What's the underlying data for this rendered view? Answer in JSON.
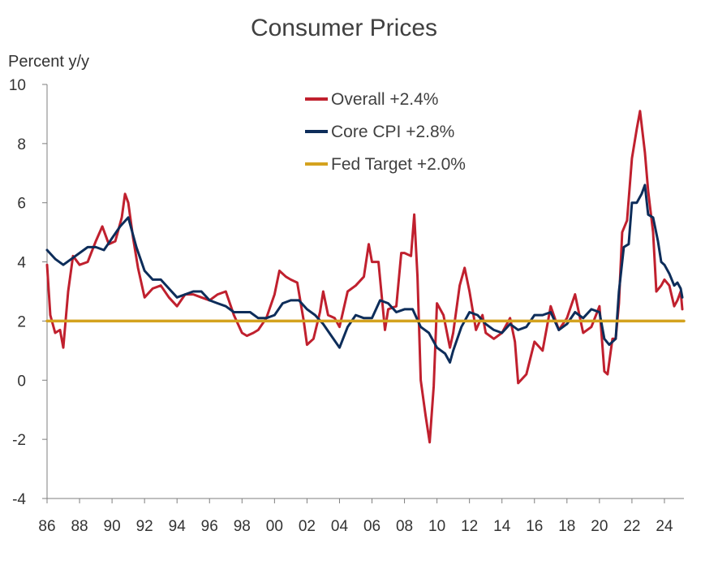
{
  "chart_data": {
    "type": "line",
    "title": "Consumer Prices",
    "ylabel": "Percent y/y",
    "xlabel": "",
    "ylim": [
      -4,
      10
    ],
    "xlim": [
      1986,
      2025.2
    ],
    "yticks": [
      -4,
      -2,
      0,
      2,
      4,
      6,
      8,
      10
    ],
    "xticks": [
      1986,
      1988,
      1990,
      1992,
      1994,
      1996,
      1998,
      2000,
      2002,
      2004,
      2006,
      2008,
      2010,
      2012,
      2014,
      2016,
      2018,
      2020,
      2022,
      2024
    ],
    "xtick_labels": [
      "86",
      "88",
      "90",
      "92",
      "94",
      "96",
      "98",
      "00",
      "02",
      "04",
      "06",
      "08",
      "10",
      "12",
      "14",
      "16",
      "18",
      "20",
      "22",
      "24"
    ],
    "grid": false,
    "legend_position": "top-center",
    "series": [
      {
        "name": "Overall +2.4%",
        "color": "#C0202E",
        "x": [
          1986.0,
          1986.2,
          1986.5,
          1986.8,
          1987.0,
          1987.3,
          1987.6,
          1988.0,
          1988.5,
          1989.0,
          1989.4,
          1989.8,
          1990.2,
          1990.6,
          1990.8,
          1991.0,
          1991.3,
          1991.6,
          1992.0,
          1992.5,
          1993.0,
          1993.5,
          1994.0,
          1994.5,
          1995.0,
          1995.5,
          1996.0,
          1996.5,
          1997.0,
          1997.5,
          1998.0,
          1998.3,
          1998.7,
          1999.0,
          1999.5,
          2000.0,
          2000.3,
          2000.7,
          2001.0,
          2001.4,
          2001.8,
          2002.0,
          2002.4,
          2002.8,
          2003.0,
          2003.3,
          2003.7,
          2004.0,
          2004.5,
          2005.0,
          2005.5,
          2005.8,
          2006.0,
          2006.4,
          2006.8,
          2007.0,
          2007.5,
          2007.8,
          2008.0,
          2008.4,
          2008.6,
          2008.8,
          2009.0,
          2009.3,
          2009.55,
          2009.8,
          2010.0,
          2010.4,
          2010.8,
          2011.0,
          2011.4,
          2011.7,
          2012.0,
          2012.4,
          2012.8,
          2013.0,
          2013.5,
          2014.0,
          2014.5,
          2014.8,
          2015.0,
          2015.5,
          2016.0,
          2016.5,
          2017.0,
          2017.5,
          2018.0,
          2018.5,
          2019.0,
          2019.5,
          2020.0,
          2020.3,
          2020.5,
          2020.8,
          2021.0,
          2021.2,
          2021.4,
          2021.7,
          2022.0,
          2022.3,
          2022.5,
          2022.8,
          2023.0,
          2023.3,
          2023.5,
          2023.8,
          2024.0,
          2024.3,
          2024.6,
          2024.8,
          2025.0,
          2025.1
        ],
        "values": [
          3.9,
          2.2,
          1.6,
          1.7,
          1.1,
          3.0,
          4.2,
          3.9,
          4.0,
          4.7,
          5.2,
          4.6,
          4.7,
          5.5,
          6.3,
          6.0,
          4.8,
          3.8,
          2.8,
          3.1,
          3.2,
          2.8,
          2.5,
          2.9,
          2.9,
          2.8,
          2.7,
          2.9,
          3.0,
          2.2,
          1.6,
          1.5,
          1.6,
          1.7,
          2.1,
          2.9,
          3.7,
          3.5,
          3.4,
          3.3,
          2.0,
          1.2,
          1.4,
          2.3,
          3.0,
          2.2,
          2.1,
          1.8,
          3.0,
          3.2,
          3.5,
          4.6,
          4.0,
          4.0,
          1.7,
          2.4,
          2.5,
          4.3,
          4.3,
          4.2,
          5.6,
          3.5,
          0.0,
          -1.2,
          -2.1,
          -0.2,
          2.6,
          2.2,
          1.1,
          1.6,
          3.2,
          3.8,
          3.0,
          1.7,
          2.2,
          1.6,
          1.4,
          1.6,
          2.1,
          1.3,
          -0.1,
          0.2,
          1.3,
          1.0,
          2.5,
          1.7,
          2.1,
          2.9,
          1.6,
          1.8,
          2.5,
          0.3,
          0.2,
          1.4,
          1.4,
          2.6,
          5.0,
          5.4,
          7.5,
          8.5,
          9.1,
          7.7,
          6.4,
          5.0,
          3.0,
          3.2,
          3.4,
          3.2,
          2.5,
          2.7,
          3.0,
          2.4
        ]
      },
      {
        "name": "Core CPI +2.8%",
        "color": "#0D2D5A",
        "x": [
          1986.0,
          1986.5,
          1987.0,
          1987.5,
          1988.0,
          1988.5,
          1989.0,
          1989.5,
          1990.0,
          1990.5,
          1991.0,
          1991.5,
          1992.0,
          1992.5,
          1993.0,
          1993.5,
          1994.0,
          1994.5,
          1995.0,
          1995.5,
          1996.0,
          1996.5,
          1997.0,
          1997.5,
          1998.0,
          1998.5,
          1999.0,
          1999.5,
          2000.0,
          2000.5,
          2001.0,
          2001.5,
          2002.0,
          2002.5,
          2003.0,
          2003.5,
          2004.0,
          2004.5,
          2005.0,
          2005.5,
          2006.0,
          2006.5,
          2007.0,
          2007.5,
          2008.0,
          2008.5,
          2009.0,
          2009.5,
          2010.0,
          2010.5,
          2010.8,
          2011.0,
          2011.5,
          2012.0,
          2012.5,
          2013.0,
          2013.5,
          2014.0,
          2014.5,
          2015.0,
          2015.5,
          2016.0,
          2016.5,
          2017.0,
          2017.5,
          2018.0,
          2018.5,
          2019.0,
          2019.5,
          2020.0,
          2020.3,
          2020.6,
          2021.0,
          2021.2,
          2021.5,
          2021.8,
          2022.0,
          2022.3,
          2022.6,
          2022.8,
          2023.0,
          2023.3,
          2023.6,
          2023.8,
          2024.0,
          2024.3,
          2024.6,
          2024.8,
          2025.0,
          2025.1
        ],
        "values": [
          4.4,
          4.1,
          3.9,
          4.1,
          4.3,
          4.5,
          4.5,
          4.4,
          4.8,
          5.2,
          5.5,
          4.5,
          3.7,
          3.4,
          3.4,
          3.1,
          2.8,
          2.9,
          3.0,
          3.0,
          2.7,
          2.6,
          2.5,
          2.3,
          2.3,
          2.3,
          2.1,
          2.1,
          2.2,
          2.6,
          2.7,
          2.7,
          2.4,
          2.2,
          1.9,
          1.5,
          1.1,
          1.8,
          2.2,
          2.1,
          2.1,
          2.7,
          2.6,
          2.3,
          2.4,
          2.4,
          1.8,
          1.6,
          1.1,
          0.9,
          0.6,
          1.0,
          1.8,
          2.3,
          2.2,
          1.9,
          1.7,
          1.6,
          1.9,
          1.7,
          1.8,
          2.2,
          2.2,
          2.3,
          1.7,
          1.9,
          2.3,
          2.1,
          2.4,
          2.3,
          1.4,
          1.2,
          1.4,
          3.0,
          4.5,
          4.6,
          6.0,
          6.0,
          6.3,
          6.6,
          5.6,
          5.5,
          4.7,
          4.0,
          3.9,
          3.6,
          3.2,
          3.3,
          3.1,
          2.8
        ]
      },
      {
        "name": "Fed Target +2.0%",
        "color": "#D4A21F",
        "x": [
          1986.0,
          2025.2
        ],
        "values": [
          2.0,
          2.0
        ]
      }
    ]
  }
}
